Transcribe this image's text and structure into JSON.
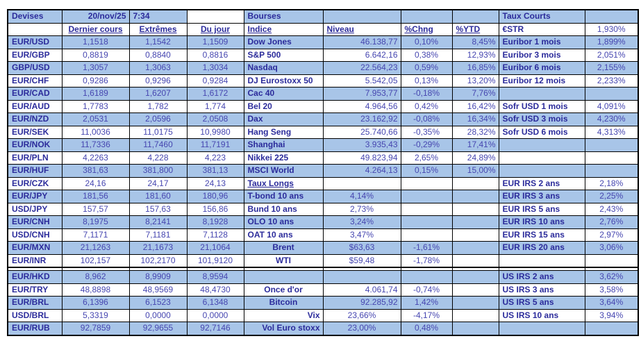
{
  "colors": {
    "row_shade": "#a8c5e8",
    "label_text": "#2b2b9b",
    "value_text": "#4646b0",
    "border": "#000000",
    "background": "#ffffff"
  },
  "table": {
    "columns": [
      {
        "key": "pair",
        "width": 78,
        "align": "left",
        "bold": true
      },
      {
        "key": "dernier-cours",
        "width": 97,
        "align": "center",
        "bold": false
      },
      {
        "key": "extremes",
        "width": 83,
        "align": "center",
        "bold": false
      },
      {
        "key": "du-jour",
        "width": 82,
        "align": "center",
        "bold": false
      },
      {
        "key": "indice",
        "width": 114,
        "align": "left",
        "bold": true
      },
      {
        "key": "niveau",
        "width": 112,
        "align": "right",
        "bold": false
      },
      {
        "key": "pct-chng",
        "width": 74,
        "align": "center",
        "bold": false
      },
      {
        "key": "pct-ytd",
        "width": 67,
        "align": "right",
        "bold": false
      },
      {
        "key": "taux-label",
        "width": 124,
        "align": "left",
        "bold": true
      },
      {
        "key": "taux-value",
        "width": 77,
        "align": "center",
        "bold": false
      }
    ],
    "rows": [
      {
        "bg": "b",
        "cells": [
          "Devises",
          {
            "t": "20/nov/25",
            "a": "right",
            "b": true
          },
          {
            "t": "7:34",
            "a": "left",
            "b": true
          },
          {
            "t": "",
            "bg": "w"
          },
          "Bourses",
          "",
          "",
          "",
          "Taux Courts",
          ""
        ]
      },
      {
        "bg": "w",
        "cells": [
          "",
          {
            "t": "Dernier cours",
            "a": "center",
            "b": true,
            "u": true
          },
          {
            "t": "Extrêmes",
            "a": "center",
            "b": true,
            "u": true
          },
          {
            "t": "Du jour",
            "a": "center",
            "b": true,
            "u": true
          },
          {
            "t": "Indice",
            "b": true,
            "u": true
          },
          {
            "t": "Niveau",
            "a": "left",
            "b": true,
            "u": true
          },
          {
            "t": "%Chng",
            "a": "left",
            "b": true,
            "u": true
          },
          {
            "t": "%YTD",
            "a": "left",
            "b": true,
            "u": true
          },
          "€STR",
          "1,930%"
        ]
      },
      {
        "bg": "b",
        "cells": [
          "EUR/USD",
          "1,1518",
          "1,1542",
          "1,1509",
          "Dow Jones",
          "46.138,77",
          "0,10%",
          "8,45%",
          "Euribor 1 mois",
          "1,899%"
        ]
      },
      {
        "bg": "w",
        "cells": [
          "EUR/GBP",
          "0,8819",
          "0,8840",
          "0,8816",
          "S&P 500",
          "6.642,16",
          "0,38%",
          "12,93%",
          "Euribor 3 mois",
          "2,051%"
        ]
      },
      {
        "bg": "b",
        "cells": [
          "GBP/USD",
          "1,3057",
          "1,3063",
          "1,3034",
          "Nasdaq",
          "22.564,23",
          "0,59%",
          "16,85%",
          "Euribor 6 mois",
          "2,155%"
        ]
      },
      {
        "bg": "w",
        "cells": [
          "EUR/CHF",
          "0,9286",
          "0,9296",
          "0,9284",
          "DJ Eurostoxx 50",
          "5.542,05",
          "0,13%",
          "13,20%",
          "Euribor 12 mois",
          "2,233%"
        ]
      },
      {
        "bg": "b",
        "cells": [
          "EUR/CAD",
          "1,6189",
          "1,6207",
          "1,6172",
          "Cac 40",
          "7.953,77",
          "-0,18%",
          "7,76%",
          "",
          ""
        ]
      },
      {
        "bg": "w",
        "cells": [
          "EUR/AUD",
          "1,7783",
          "1,782",
          "1,774",
          "Bel 20",
          "4.964,56",
          "0,42%",
          "16,42%",
          "Sofr USD 1 mois",
          "4,091%"
        ]
      },
      {
        "bg": "b",
        "cells": [
          "EUR/NZD",
          "2,0531",
          "2,0596",
          "2,0508",
          "Dax",
          "23.162,92",
          "-0,08%",
          "16,34%",
          "Sofr USD 3 mois",
          "4,230%"
        ]
      },
      {
        "bg": "w",
        "cells": [
          "EUR/SEK",
          "11,0036",
          "11,0175",
          "10,9980",
          "Hang Seng",
          "25.740,66",
          "-0,35%",
          "28,32%",
          "Sofr USD 6 mois",
          "4,313%"
        ]
      },
      {
        "bg": "b",
        "cells": [
          "EUR/NOK",
          "11,7336",
          "11,7460",
          "11,7191",
          "Shanghai",
          "3.935,43",
          "-0,29%",
          "17,41%",
          "",
          ""
        ]
      },
      {
        "bg": "w",
        "cells": [
          "EUR/PLN",
          "4,2263",
          "4,228",
          "4,223",
          "Nikkei 225",
          "49.823,94",
          "2,65%",
          "24,89%",
          "",
          ""
        ]
      },
      {
        "bg": "b",
        "cells": [
          "EUR/HUF",
          "381,63",
          "381,800",
          "381,13",
          "MSCI World",
          "4.264,13",
          "0,15%",
          "15,00%",
          "",
          ""
        ]
      },
      {
        "bg": "w",
        "cells": [
          "EUR/CZK",
          "24,16",
          "24,17",
          "24,13",
          {
            "t": "Taux Longs",
            "u": true
          },
          "",
          "",
          "",
          "EUR IRS 2 ans",
          "2,18%"
        ]
      },
      {
        "bg": "b",
        "cells": [
          "EUR/JPY",
          "181,56",
          "181,60",
          "180,96",
          "T-bond 10 ans",
          {
            "t": "4,14%",
            "a": "center"
          },
          "",
          "",
          "EUR IRS 3 ans",
          "2,25%"
        ]
      },
      {
        "bg": "w",
        "cells": [
          "USD/JPY",
          "157,57",
          "157,63",
          "156,86",
          "Bund 10 ans",
          {
            "t": "2,73%",
            "a": "center"
          },
          "",
          "",
          "EUR IRS 5 ans",
          "2,43%"
        ]
      },
      {
        "bg": "b",
        "cells": [
          "EUR/CNH",
          "8,1975",
          "8,2141",
          "8,1928",
          "OLO 10 ans",
          {
            "t": "3,24%",
            "a": "center"
          },
          "",
          "",
          "EUR IRS 10 ans",
          "2,76%"
        ]
      },
      {
        "bg": "w",
        "cells": [
          "USD/CNH",
          "7,1171",
          "7,1181",
          "7,1128",
          "OAT 10 ans",
          {
            "t": "3,47%",
            "a": "center"
          },
          "",
          "",
          "EUR IRS 15 ans",
          "2,97%"
        ]
      },
      {
        "bg": "b",
        "cells": [
          "EUR/MXN",
          "21,1263",
          "21,1673",
          "21,1064",
          {
            "t": "Brent",
            "a": "center"
          },
          {
            "t": "$63,63",
            "a": "center"
          },
          "-1,61%",
          "",
          "EUR IRS 20 ans",
          "3,06%"
        ]
      },
      {
        "bg": "w",
        "cells": [
          "EUR/INR",
          "102,157",
          "102,2170",
          "101,9120",
          {
            "t": "WTI",
            "a": "center"
          },
          {
            "t": "$59,48",
            "a": "center"
          },
          "-1,78%",
          "",
          "",
          ""
        ]
      },
      {
        "spacer": true,
        "bg": "w"
      },
      {
        "bg": "b",
        "cells": [
          "EUR/HKD",
          "8,962",
          "8,9909",
          "8,9594",
          "",
          "",
          "",
          "",
          "US IRS 2 ans",
          "3,62%"
        ]
      },
      {
        "bg": "w",
        "cells": [
          "EUR/TRY",
          "48,8898",
          "48,9569",
          "48,4730",
          {
            "t": "Once d'or",
            "a": "center"
          },
          "4.061,74",
          "-0,74%",
          "",
          "US IRS 3 ans",
          "3,58%"
        ]
      },
      {
        "bg": "b",
        "cells": [
          "EUR/BRL",
          "6,1396",
          "6,1523",
          "6,1348",
          {
            "t": "Bitcoin",
            "a": "center"
          },
          "92.285,92",
          "1,42%",
          "",
          "US IRS 5 ans",
          "3,64%"
        ]
      },
      {
        "bg": "w",
        "cells": [
          "USD/BRL",
          "5,3319",
          "0,0000",
          "0,0000",
          {
            "t": "Vix",
            "a": "right"
          },
          {
            "t": "23,66%",
            "a": "center"
          },
          "-4,17%",
          "",
          "US IRS 10 ans",
          "3,94%"
        ]
      },
      {
        "bg": "b",
        "cells": [
          "EUR/RUB",
          "92,7859",
          "92,9655",
          "92,7146",
          {
            "t": "Vol Euro stoxx",
            "a": "right"
          },
          {
            "t": "23,00%",
            "a": "center"
          },
          "0,48%",
          "",
          "",
          ""
        ]
      }
    ]
  }
}
